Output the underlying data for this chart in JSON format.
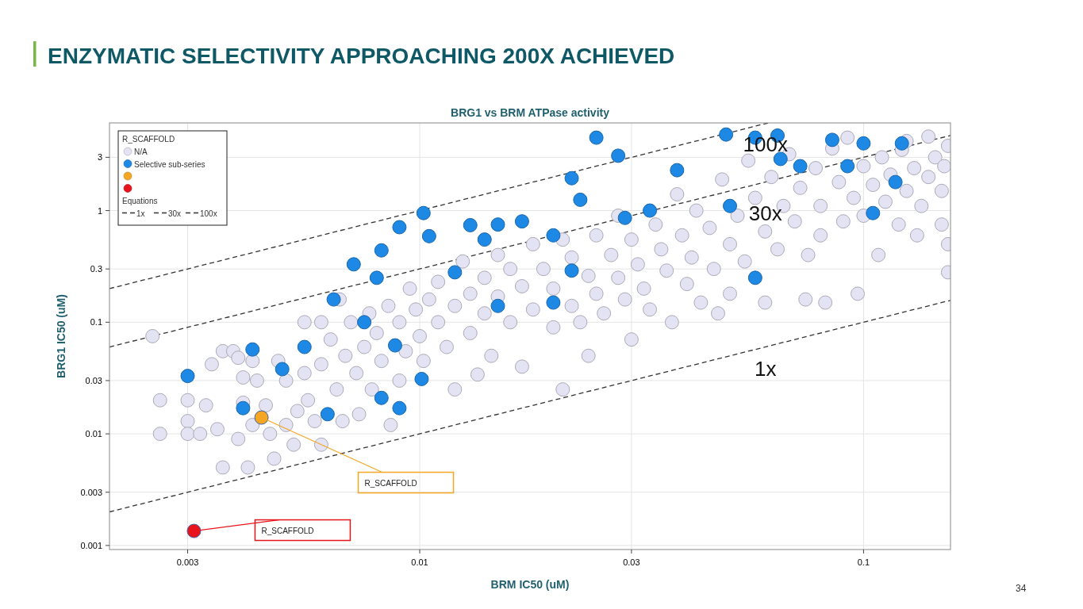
{
  "chart_data": {
    "type": "scatter",
    "title": "ENZYMATIC SELECTIVITY APPROACHING 200X ACHIEVED",
    "subtitle": "BRG1 vs BRM ATPase activity",
    "xlabel": "BRM IC50 (uM)",
    "ylabel": "BRG1 IC50 (uM)",
    "legend_title": "R_SCAFFOLD",
    "legend": "top left",
    "grid": true,
    "log": "xy",
    "xlim": [
      0.002,
      0.157
    ],
    "ylim": [
      0.00092,
      6.1
    ],
    "xticks": [
      0.003,
      0.01,
      0.03,
      0.1
    ],
    "yticks": [
      0.001,
      0.003,
      0.01,
      0.03,
      0.1,
      0.3,
      1,
      3
    ],
    "series": [
      {
        "name": "N/A",
        "marker": "circle",
        "color": "#e3e3f3",
        "x": [
          0.0025,
          0.0026,
          0.0026,
          0.003,
          0.003,
          0.003,
          0.0032,
          0.0033,
          0.0034,
          0.0035,
          0.0036,
          0.0036,
          0.0038,
          0.0039,
          0.004,
          0.004,
          0.0041,
          0.0039,
          0.0042,
          0.0042,
          0.0043,
          0.0045,
          0.0046,
          0.0047,
          0.0048,
          0.005,
          0.005,
          0.0052,
          0.0053,
          0.0055,
          0.0055,
          0.0056,
          0.0058,
          0.006,
          0.006,
          0.006,
          0.0063,
          0.0065,
          0.0066,
          0.0067,
          0.0068,
          0.007,
          0.0072,
          0.0073,
          0.0075,
          0.0077,
          0.0078,
          0.008,
          0.0082,
          0.0085,
          0.0086,
          0.009,
          0.009,
          0.0093,
          0.0095,
          0.0098,
          0.01,
          0.0102,
          0.0105,
          0.011,
          0.011,
          0.0115,
          0.012,
          0.012,
          0.0125,
          0.013,
          0.013,
          0.0135,
          0.014,
          0.014,
          0.0145,
          0.015,
          0.015,
          0.016,
          0.016,
          0.017,
          0.017,
          0.018,
          0.018,
          0.019,
          0.02,
          0.02,
          0.021,
          0.021,
          0.022,
          0.022,
          0.023,
          0.024,
          0.024,
          0.025,
          0.025,
          0.026,
          0.027,
          0.028,
          0.028,
          0.029,
          0.03,
          0.03,
          0.031,
          0.032,
          0.033,
          0.034,
          0.035,
          0.036,
          0.037,
          0.038,
          0.039,
          0.04,
          0.041,
          0.042,
          0.043,
          0.045,
          0.046,
          0.047,
          0.048,
          0.05,
          0.05,
          0.052,
          0.054,
          0.055,
          0.057,
          0.058,
          0.06,
          0.06,
          0.062,
          0.064,
          0.066,
          0.068,
          0.07,
          0.072,
          0.074,
          0.075,
          0.078,
          0.08,
          0.08,
          0.082,
          0.085,
          0.088,
          0.09,
          0.092,
          0.095,
          0.097,
          0.1,
          0.1,
          0.105,
          0.108,
          0.11,
          0.112,
          0.115,
          0.12,
          0.122,
          0.125,
          0.13,
          0.132,
          0.135,
          0.14,
          0.14,
          0.145,
          0.15,
          0.15,
          0.152,
          0.155,
          0.155,
          0.155,
          0.125
        ],
        "values": [
          0.075,
          0.02,
          0.01,
          0.02,
          0.013,
          0.01,
          0.01,
          0.018,
          0.042,
          0.011,
          0.005,
          0.055,
          0.055,
          0.048,
          0.032,
          0.019,
          0.005,
          0.009,
          0.012,
          0.045,
          0.03,
          0.018,
          0.01,
          0.006,
          0.045,
          0.03,
          0.012,
          0.008,
          0.016,
          0.1,
          0.035,
          0.02,
          0.013,
          0.1,
          0.042,
          0.008,
          0.07,
          0.025,
          0.16,
          0.013,
          0.05,
          0.1,
          0.035,
          0.015,
          0.06,
          0.12,
          0.025,
          0.08,
          0.045,
          0.14,
          0.012,
          0.03,
          0.1,
          0.055,
          0.2,
          0.13,
          0.075,
          0.045,
          0.16,
          0.1,
          0.23,
          0.06,
          0.14,
          0.025,
          0.35,
          0.18,
          0.08,
          0.034,
          0.12,
          0.25,
          0.05,
          0.4,
          0.17,
          0.1,
          0.3,
          0.21,
          0.04,
          0.13,
          0.5,
          0.3,
          0.2,
          0.09,
          0.55,
          0.025,
          0.14,
          0.38,
          0.1,
          0.26,
          0.05,
          0.6,
          0.18,
          0.12,
          0.4,
          0.9,
          0.25,
          0.16,
          0.55,
          0.07,
          0.33,
          0.2,
          0.13,
          0.75,
          0.45,
          0.29,
          0.1,
          1.4,
          0.6,
          0.22,
          0.38,
          1.0,
          0.15,
          0.7,
          0.3,
          0.12,
          1.9,
          0.5,
          0.18,
          0.9,
          0.35,
          2.8,
          1.3,
          null,
          0.65,
          0.15,
          2.0,
          0.45,
          1.1,
          3.2,
          0.8,
          1.6,
          0.16,
          0.4,
          2.4,
          1.1,
          0.6,
          0.15,
          3.6,
          1.8,
          0.8,
          4.5,
          1.3,
          0.18,
          2.5,
          0.9,
          1.7,
          0.4,
          3.0,
          1.2,
          2.1,
          0.75,
          3.5,
          1.5,
          2.4,
          0.6,
          1.1,
          4.6,
          2.0,
          3.0,
          1.5,
          0.75,
          2.5,
          0.5,
          0.28,
          3.8,
          4.2
        ]
      },
      {
        "name": "Selective sub-series",
        "marker": "circle",
        "color": "#1e88e5",
        "x": [
          0.003,
          0.0042,
          0.004,
          0.0062,
          0.0071,
          0.008,
          0.0082,
          0.009,
          0.0102,
          0.0105,
          0.013,
          0.015,
          0.017,
          0.0064,
          0.0101,
          0.009,
          0.0049,
          0.025,
          0.028,
          0.022,
          0.023,
          0.029,
          0.038,
          0.049,
          0.057,
          0.064,
          0.065,
          0.085,
          0.1,
          0.122,
          0.092,
          0.072,
          0.05,
          0.033,
          0.02,
          0.022,
          0.014,
          0.012,
          0.02,
          0.057,
          0.105,
          0.118,
          0.015,
          0.0075,
          0.0088,
          0.0082,
          0.0055
        ],
        "values": [
          0.033,
          0.057,
          0.017,
          0.015,
          0.33,
          0.25,
          0.44,
          0.71,
          0.95,
          0.59,
          0.74,
          0.75,
          0.8,
          0.16,
          0.031,
          0.017,
          0.038,
          4.5,
          3.1,
          1.95,
          1.25,
          0.86,
          2.3,
          4.8,
          4.5,
          4.7,
          2.9,
          4.3,
          4.0,
          4.0,
          2.5,
          2.5,
          1.1,
          1.0,
          0.6,
          0.29,
          0.55,
          0.28,
          0.15,
          0.25,
          0.95,
          1.8,
          0.14,
          0.1,
          0.062,
          0.021,
          0.06
        ]
      },
      {
        "marker": "circle",
        "color": "#f5a623",
        "x": [
          0.0044
        ],
        "values": [
          0.014
        ]
      },
      {
        "marker": "circle",
        "color": "#e8141c",
        "x": [
          0.0031
        ],
        "values": [
          0.00135
        ]
      },
      {
        "name": "1x",
        "type": "line",
        "line_style": "dashed",
        "color": "#333333",
        "x": [
          0.002,
          0.157
        ],
        "values": [
          0.002,
          0.157
        ]
      },
      {
        "name": "30x",
        "type": "line",
        "line_style": "dashed",
        "color": "#333333",
        "x": [
          0.002,
          0.157
        ],
        "values": [
          0.06,
          4.71
        ]
      },
      {
        "name": "100x",
        "type": "line",
        "line_style": "dashed",
        "color": "#333333",
        "x": [
          0.002,
          0.061
        ],
        "values": [
          0.2,
          6.1
        ]
      }
    ],
    "annotations": [
      "Equations",
      "34",
      "100x",
      "30x",
      "1x",
      {
        "text": "R_SCAFFOLD",
        "x": 0.0044,
        "y": 0.014
      },
      {
        "text": "R_SCAFFOLD",
        "x": 0.0031,
        "y": 0.00135
      }
    ]
  }
}
